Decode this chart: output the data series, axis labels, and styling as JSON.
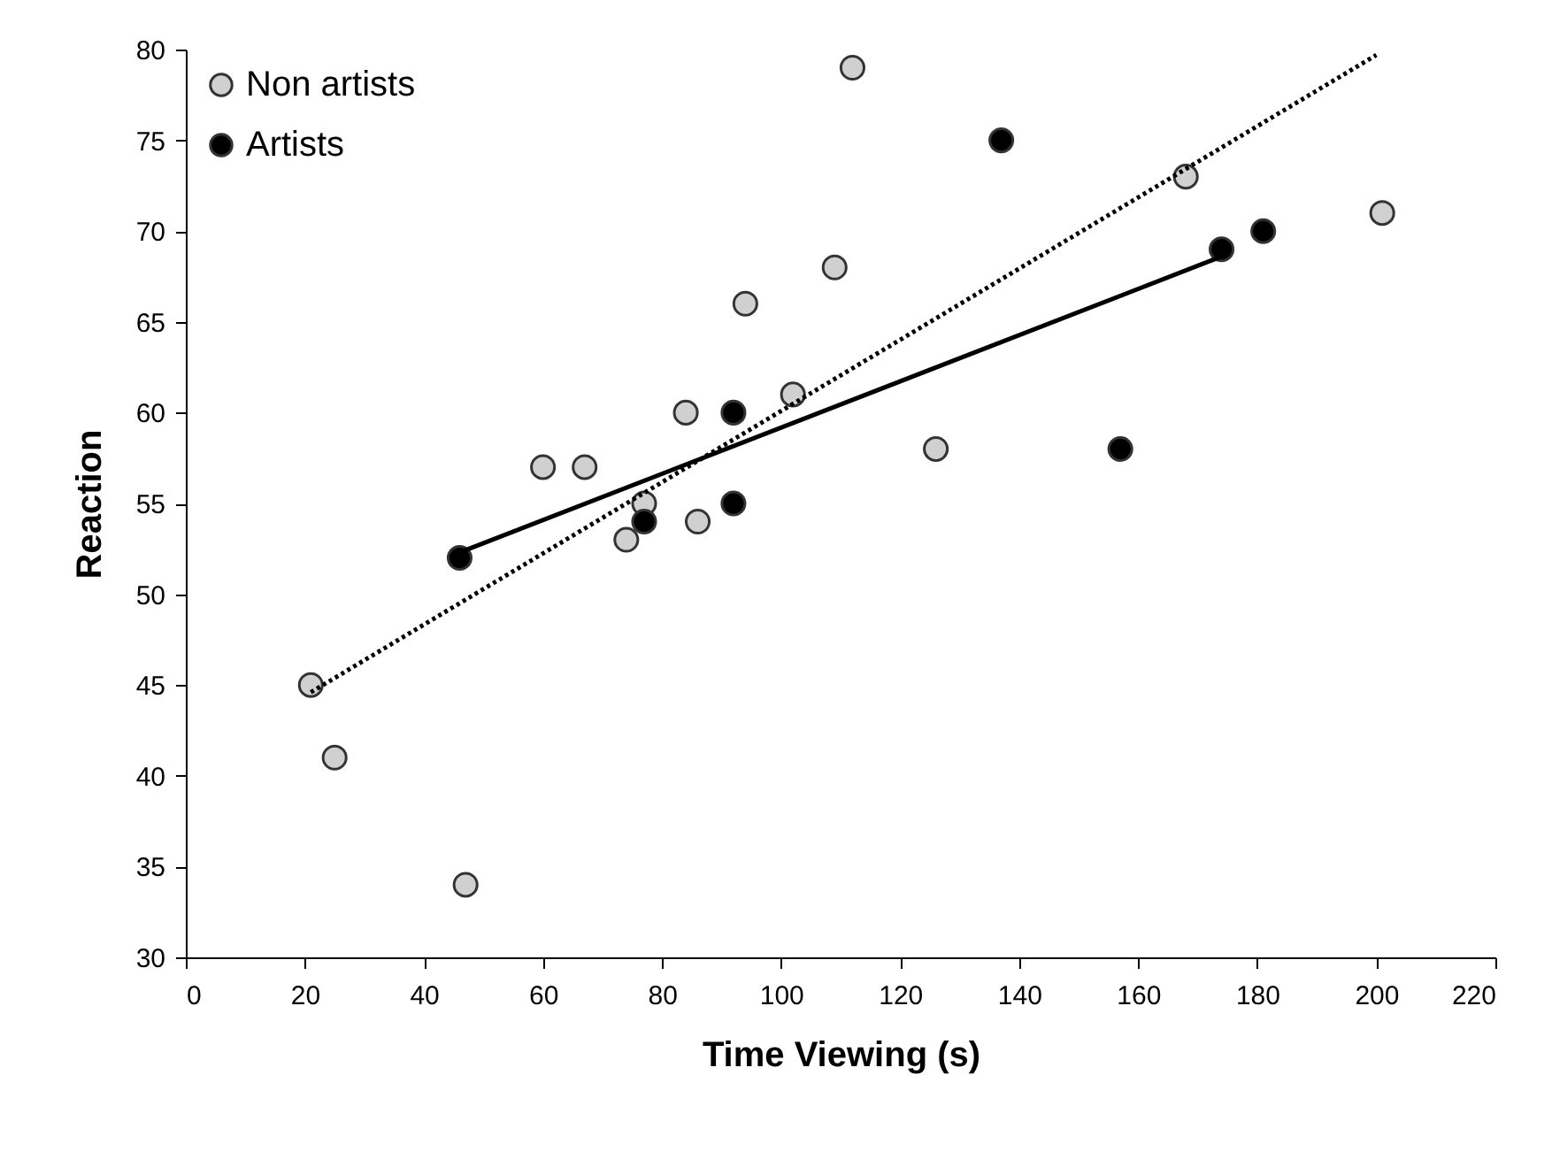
{
  "chart_data": {
    "type": "scatter",
    "xlabel": "Time Viewing (s)",
    "ylabel": "Reaction",
    "series": [
      {
        "name": "Non artists",
        "color": "#d0d0d0",
        "x": [
          21,
          25,
          47,
          60,
          67,
          74,
          77,
          84,
          86,
          94,
          102,
          109,
          112,
          126,
          168,
          201
        ],
        "values": [
          45,
          41,
          34,
          57,
          57,
          53,
          55,
          60,
          54,
          66,
          61,
          68,
          79,
          58,
          73,
          71
        ]
      },
      {
        "name": "Artists",
        "color": "#000000",
        "x": [
          46,
          77,
          92,
          92,
          137,
          157,
          174,
          181
        ],
        "values": [
          52,
          54,
          60,
          55,
          75,
          58,
          69,
          70
        ]
      },
      {
        "type": "line",
        "marker": "none",
        "color": "#000000",
        "line_style": "dotted",
        "x": [
          21,
          200
        ],
        "values": [
          44.6,
          79.7
        ]
      },
      {
        "type": "line",
        "marker": "none",
        "color": "#000000",
        "line_style": "solid",
        "x": [
          46,
          174
        ],
        "values": [
          52.3,
          68.6
        ]
      }
    ],
    "xlim": [
      0,
      220
    ],
    "xticks": [
      0,
      20,
      40,
      60,
      80,
      100,
      120,
      140,
      160,
      180,
      200,
      220
    ],
    "ylim": [
      30,
      80
    ],
    "yticks": [
      30,
      35,
      40,
      45,
      50,
      55,
      60,
      65,
      70,
      75,
      80
    ],
    "grid": false,
    "legend": "top left",
    "marker": "circle"
  }
}
